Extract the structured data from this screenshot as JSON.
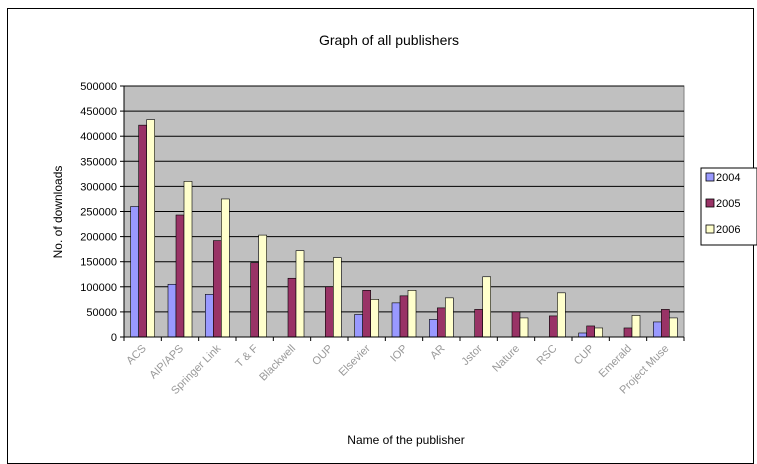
{
  "chart_data": {
    "type": "bar",
    "title": "Graph of all publishers",
    "xlabel": "Name of the publisher",
    "ylabel": "No. of downloads",
    "ylim": [
      0,
      500000
    ],
    "yticks": [
      "0",
      "50000",
      "100000",
      "150000",
      "200000",
      "250000",
      "300000",
      "350000",
      "400000",
      "450000",
      "500000"
    ],
    "grid": true,
    "legend_position": "right",
    "categories": [
      "ACS",
      "AIP/APS",
      "Springer Link",
      "T & F",
      "Blackwell",
      "OUP",
      "Elsevier",
      "IOP",
      "AR",
      "Jstor",
      "Nature",
      "RSC",
      "CUP",
      "Emerald",
      "Project Muse"
    ],
    "series": [
      {
        "name": "2004",
        "color": "#9999ff",
        "values": [
          260000,
          105000,
          85000,
          0,
          0,
          0,
          45000,
          68000,
          35000,
          0,
          0,
          0,
          8000,
          0,
          30000
        ]
      },
      {
        "name": "2005",
        "color": "#993366",
        "values": [
          422000,
          243000,
          192000,
          148000,
          117000,
          100000,
          93000,
          82000,
          58000,
          55000,
          50000,
          42000,
          22000,
          18000,
          55000
        ]
      },
      {
        "name": "2006",
        "color": "#ffffcc",
        "values": [
          433000,
          310000,
          275000,
          203000,
          172000,
          158000,
          75000,
          93000,
          78000,
          120000,
          38000,
          88000,
          18000,
          43000,
          38000
        ]
      }
    ],
    "colors": {
      "plot_background": "#c0c0c0",
      "gridline": "#000000"
    }
  }
}
